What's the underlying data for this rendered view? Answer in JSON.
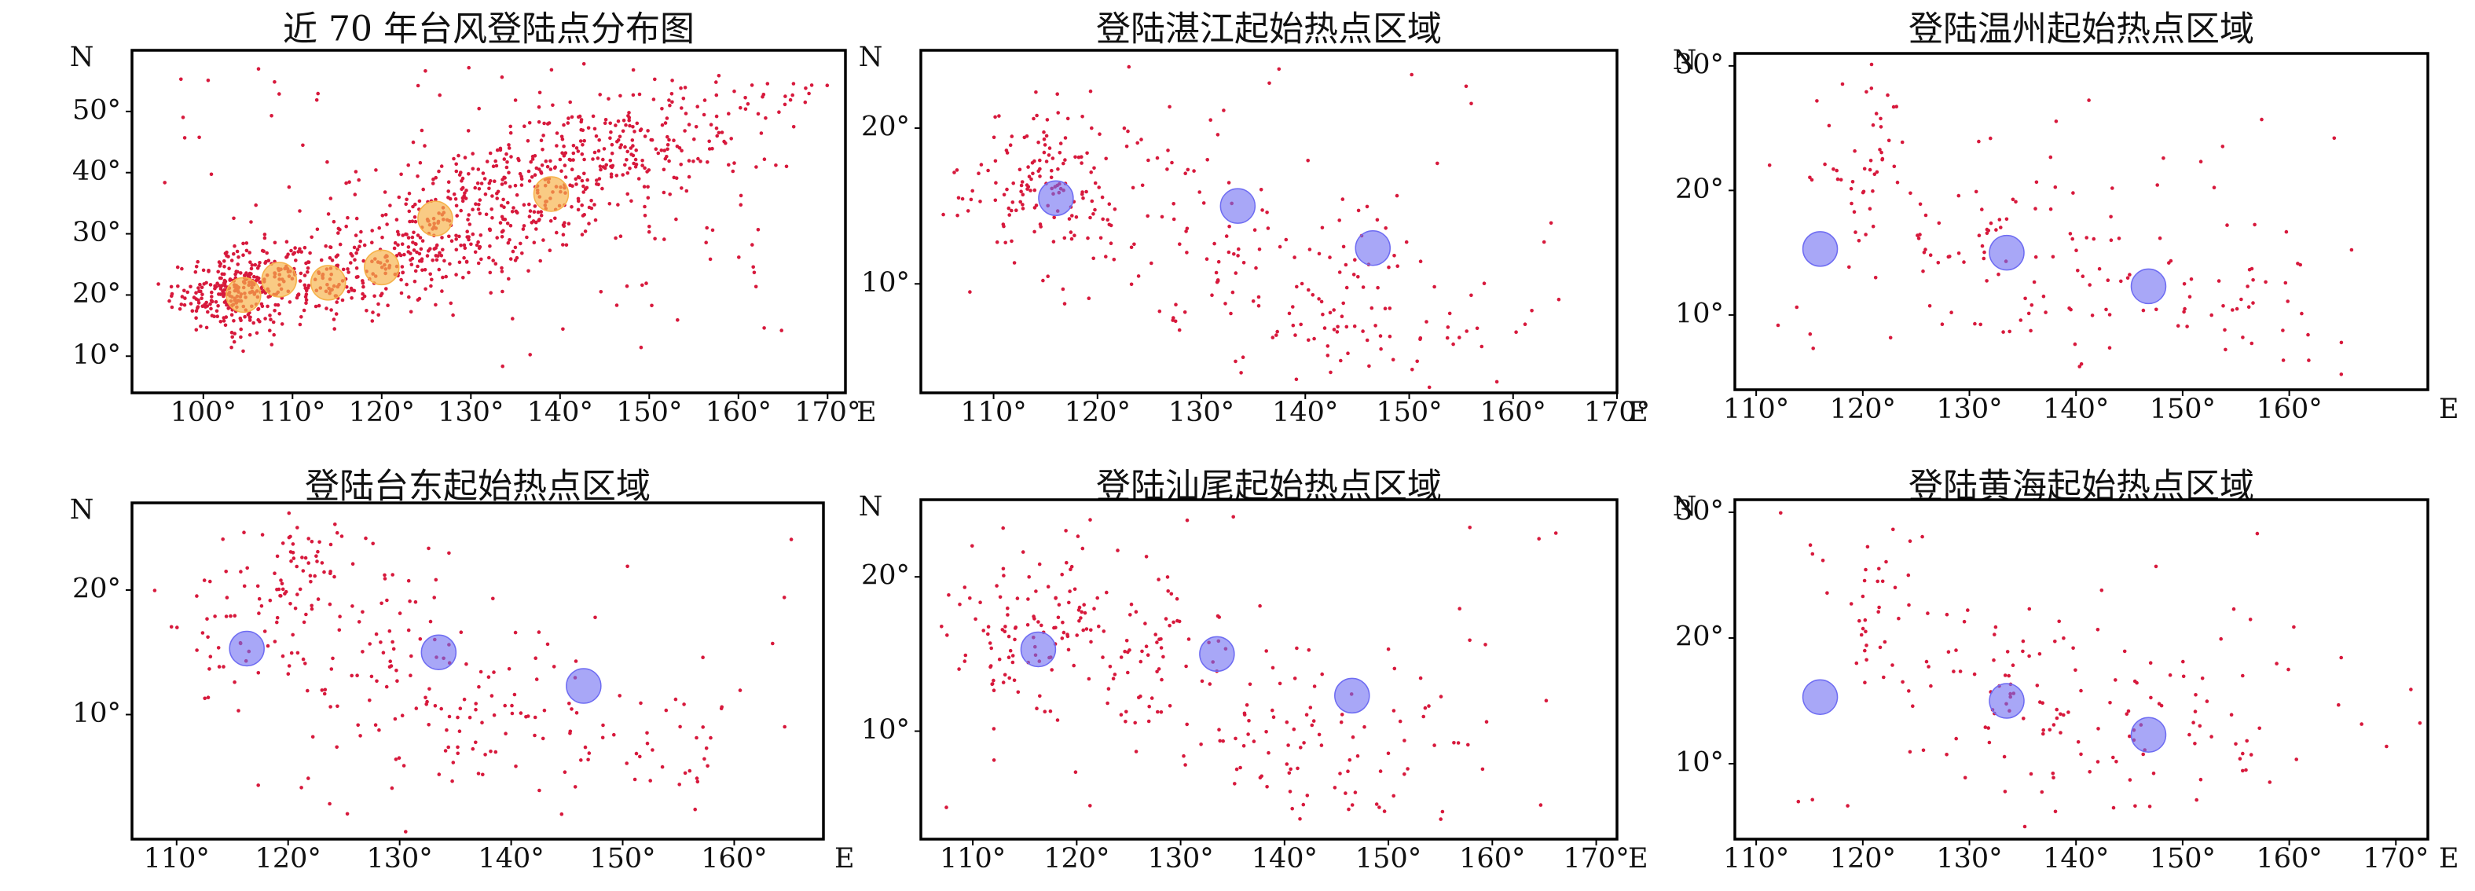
{
  "colors": {
    "points": "#d7193c",
    "hotspot_orange": "#f6b24a",
    "hotspot_blue": "#6e6cf2",
    "frame": "#000000"
  },
  "chart_data": [
    {
      "type": "scatter",
      "title": "近 70 年台风登陆点分布图",
      "xlabel": "E",
      "ylabel": "N",
      "xlim": [
        92,
        172
      ],
      "ylim": [
        4,
        60
      ],
      "xticks": [
        "100°",
        "110°",
        "120°",
        "130°",
        "140°",
        "150°",
        "160°",
        "170°"
      ],
      "yticks": [
        "10°",
        "20°",
        "30°",
        "40°",
        "50°"
      ],
      "grid": false,
      "cloud": {
        "density": [
          [
            103,
            20,
            220,
            3.2,
            3.0
          ],
          [
            107,
            23,
            80,
            3,
            3
          ],
          [
            113,
            23,
            90,
            5,
            3.5
          ],
          [
            120,
            25,
            110,
            5,
            4
          ],
          [
            127,
            31,
            150,
            6,
            5
          ],
          [
            135,
            36,
            150,
            6,
            5
          ],
          [
            143,
            41,
            140,
            6,
            5
          ],
          [
            151,
            46,
            120,
            7,
            4.5
          ],
          [
            163,
            53,
            20,
            4,
            2
          ]
        ],
        "spread": {
          "n": 110,
          "x": [
            95,
            167
          ],
          "y": [
            8,
            58
          ]
        }
      },
      "hotspots": [
        {
          "x": 104.5,
          "y": 20.0,
          "color": "orange"
        },
        {
          "x": 108.5,
          "y": 22.5,
          "color": "orange"
        },
        {
          "x": 114.0,
          "y": 22.0,
          "color": "orange"
        },
        {
          "x": 120.0,
          "y": 24.5,
          "color": "orange"
        },
        {
          "x": 126.0,
          "y": 32.5,
          "color": "orange"
        },
        {
          "x": 139.0,
          "y": 36.5,
          "color": "orange"
        }
      ]
    },
    {
      "type": "scatter",
      "title": "登陆湛江起始热点区域",
      "xlabel": "E",
      "ylabel": "N",
      "xlim": [
        103,
        170
      ],
      "ylim": [
        3,
        25
      ],
      "xticks": [
        "110°",
        "120°",
        "130°",
        "140°",
        "150°",
        "160°",
        "170°"
      ],
      "yticks": [
        "10°",
        "20°"
      ],
      "grid": false,
      "cloud": {
        "density": [
          [
            114,
            17,
            110,
            3.5,
            2.5
          ],
          [
            118,
            15,
            40,
            4,
            3
          ],
          [
            130,
            13,
            70,
            6,
            4
          ],
          [
            143,
            9,
            70,
            7,
            3
          ],
          [
            152,
            7,
            20,
            5,
            2
          ]
        ],
        "spread": {
          "n": 30,
          "x": [
            106,
            167
          ],
          "y": [
            4,
            24
          ]
        }
      },
      "hotspots": [
        {
          "x": 116.0,
          "y": 15.5,
          "color": "blue"
        },
        {
          "x": 133.5,
          "y": 15.0,
          "color": "blue"
        },
        {
          "x": 146.5,
          "y": 12.3,
          "color": "blue"
        }
      ]
    },
    {
      "type": "scatter",
      "title": "登陆温州起始热点区域",
      "xlabel": "E",
      "ylabel": "N",
      "xlim": [
        108,
        173
      ],
      "ylim": [
        4,
        31
      ],
      "xticks": [
        "110°",
        "120°",
        "130°",
        "140°",
        "150°",
        "160°"
      ],
      "yticks": [
        "10°",
        "20°",
        "30°"
      ],
      "grid": false,
      "cloud": {
        "density": [
          [
            121,
            23,
            40,
            3,
            3.5
          ],
          [
            130,
            17,
            50,
            6,
            4
          ],
          [
            144,
            11,
            50,
            7,
            3
          ],
          [
            155,
            13,
            25,
            7,
            4
          ]
        ],
        "spread": {
          "n": 30,
          "x": [
            111,
            170
          ],
          "y": [
            5,
            30
          ]
        }
      },
      "hotspots": [
        {
          "x": 116.0,
          "y": 15.3,
          "color": "blue"
        },
        {
          "x": 133.5,
          "y": 15.0,
          "color": "blue"
        },
        {
          "x": 146.8,
          "y": 12.3,
          "color": "blue"
        }
      ]
    },
    {
      "type": "scatter",
      "title": "登陆台东起始热点区域",
      "xlabel": "E",
      "ylabel": "N",
      "xlim": [
        106,
        168
      ],
      "ylim": [
        0,
        27
      ],
      "xticks": [
        "110°",
        "120°",
        "130°",
        "140°",
        "150°",
        "160°"
      ],
      "yticks": [
        "10°",
        "20°"
      ],
      "grid": false,
      "cloud": {
        "density": [
          [
            121,
            21,
            60,
            3,
            2.5
          ],
          [
            115,
            17,
            40,
            3,
            3
          ],
          [
            130,
            14,
            80,
            5,
            4
          ],
          [
            141,
            9,
            60,
            6,
            3
          ],
          [
            152,
            7,
            20,
            5,
            2
          ]
        ],
        "spread": {
          "n": 40,
          "x": [
            109,
            166
          ],
          "y": [
            2,
            25
          ]
        }
      },
      "hotspots": [
        {
          "x": 116.3,
          "y": 15.3,
          "color": "blue"
        },
        {
          "x": 133.5,
          "y": 15.0,
          "color": "blue"
        },
        {
          "x": 146.5,
          "y": 12.3,
          "color": "blue"
        }
      ]
    },
    {
      "type": "scatter",
      "title": "登陆汕尾起始热点区域",
      "xlabel": "E",
      "ylabel": "N",
      "xlim": [
        105,
        172
      ],
      "ylim": [
        3,
        25
      ],
      "xticks": [
        "110°",
        "120°",
        "130°",
        "140°",
        "150°",
        "160°",
        "170°"
      ],
      "yticks": [
        "10°",
        "20°"
      ],
      "grid": false,
      "cloud": {
        "density": [
          [
            116,
            17,
            110,
            4,
            3
          ],
          [
            128,
            15,
            60,
            5,
            3.5
          ],
          [
            140,
            10,
            70,
            7,
            3
          ],
          [
            152,
            8,
            25,
            6,
            2.5
          ]
        ],
        "spread": {
          "n": 30,
          "x": [
            107,
            168
          ],
          "y": [
            4,
            24
          ]
        }
      },
      "hotspots": [
        {
          "x": 116.3,
          "y": 15.3,
          "color": "blue"
        },
        {
          "x": 133.5,
          "y": 15.0,
          "color": "blue"
        },
        {
          "x": 146.5,
          "y": 12.3,
          "color": "blue"
        }
      ]
    },
    {
      "type": "scatter",
      "title": "登陆黄海起始热点区域",
      "xlabel": "E",
      "ylabel": "N",
      "xlim": [
        108,
        173
      ],
      "ylim": [
        4,
        31
      ],
      "xticks": [
        "110°",
        "120°",
        "130°",
        "140°",
        "150°",
        "160°",
        "170°"
      ],
      "yticks": [
        "10°",
        "20°",
        "30°"
      ],
      "grid": false,
      "cloud": {
        "density": [
          [
            121,
            23,
            30,
            3,
            3
          ],
          [
            132,
            17,
            60,
            6,
            4
          ],
          [
            145,
            12,
            50,
            7,
            3
          ],
          [
            158,
            13,
            15,
            7,
            3
          ]
        ],
        "spread": {
          "n": 30,
          "x": [
            111,
            172
          ],
          "y": [
            5,
            30
          ]
        }
      },
      "hotspots": [
        {
          "x": 116.0,
          "y": 15.3,
          "color": "blue"
        },
        {
          "x": 133.5,
          "y": 15.0,
          "color": "blue"
        },
        {
          "x": 146.8,
          "y": 12.3,
          "color": "blue"
        }
      ]
    }
  ]
}
